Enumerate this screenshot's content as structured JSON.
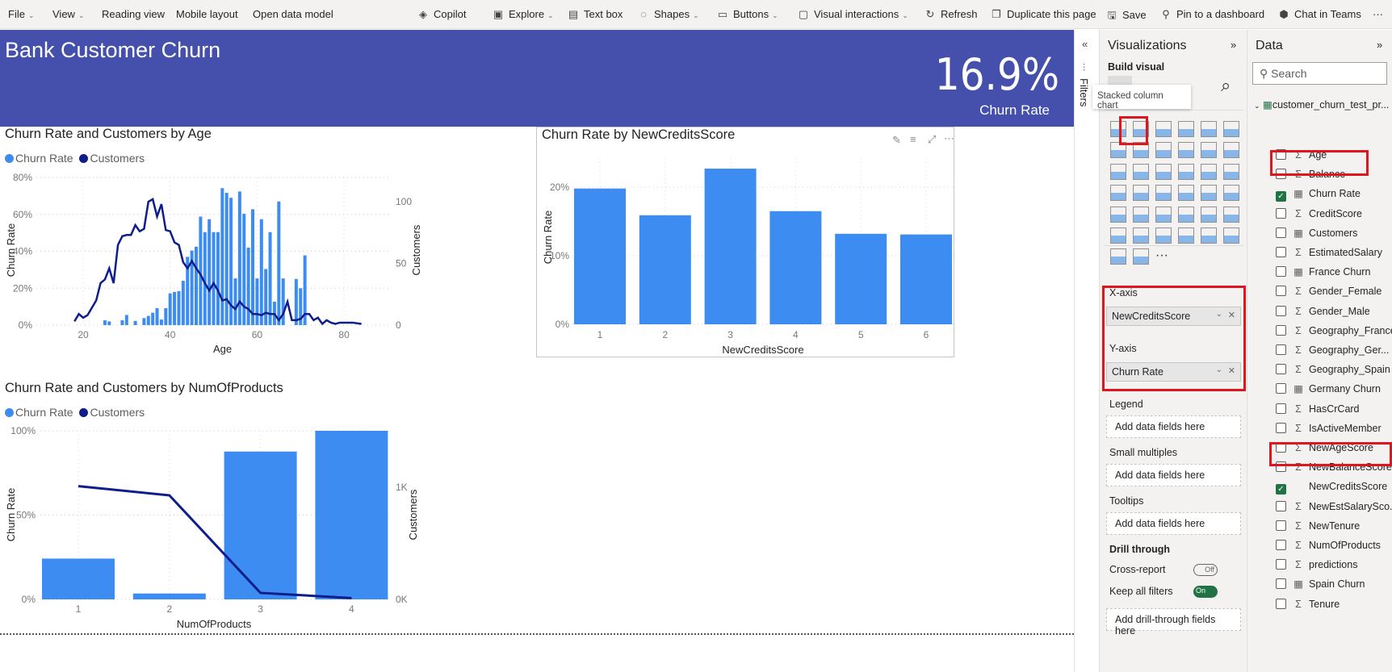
{
  "toolbar": {
    "items": [
      {
        "label": "File",
        "icon": "",
        "chevron": true
      },
      {
        "label": "View",
        "icon": "",
        "chevron": true
      },
      {
        "label": "Reading view",
        "icon": ""
      },
      {
        "label": "Mobile layout",
        "icon": ""
      },
      {
        "label": "Open data model",
        "icon": ""
      },
      {
        "label": "Copilot",
        "icon": "copilot-icon",
        "chevron": false
      },
      {
        "label": "Explore",
        "icon": "explore-icon",
        "chevron": true
      },
      {
        "label": "Text box",
        "icon": "text-box-icon"
      },
      {
        "label": "Shapes",
        "icon": "shapes-icon",
        "chevron": true
      },
      {
        "label": "Buttons",
        "icon": "buttons-icon",
        "chevron": true
      },
      {
        "label": "Visual interactions",
        "icon": "visual-interactions-icon",
        "chevron": true
      },
      {
        "label": "Refresh",
        "icon": "refresh-icon"
      },
      {
        "label": "Duplicate this page",
        "icon": "duplicate-icon"
      },
      {
        "label": "Save",
        "icon": "save-icon"
      },
      {
        "label": "Pin to a dashboard",
        "icon": "pin-icon"
      },
      {
        "label": "Chat in Teams",
        "icon": "teams-icon"
      }
    ],
    "more": "···"
  },
  "banner": {
    "title": "Bank Customer Churn",
    "kpi_value": "16.9%",
    "kpi_label": "Churn Rate",
    "color": "#4450ab"
  },
  "colors": {
    "churn": "#3c8cf2",
    "customers": "#0d1d8c"
  },
  "chart_data": [
    {
      "type": "bar+line",
      "title": "Churn Rate and Customers by Age",
      "legend": [
        "Churn Rate",
        "Customers"
      ],
      "xlabel": "Age",
      "ylabel": "Churn Rate",
      "y2label": "Customers",
      "xticks": [
        "20",
        "40",
        "60",
        "80"
      ],
      "yticks": [
        "0%",
        "20%",
        "40%",
        "60%",
        "80%"
      ],
      "y2ticks": [
        "0",
        "50",
        "100"
      ],
      "ylim": [
        0,
        80
      ],
      "y2lim": [
        0,
        100
      ],
      "xlim": [
        10,
        90
      ],
      "bars": {
        "x": [
          25,
          26,
          29,
          30,
          32,
          34,
          35,
          36,
          37,
          38,
          39,
          40,
          41,
          42,
          43,
          44,
          45,
          46,
          47,
          48,
          49,
          50,
          51,
          52,
          53,
          54,
          55,
          56,
          57,
          58,
          59,
          60,
          61,
          62,
          63,
          64,
          65,
          66,
          69,
          70,
          71
        ],
        "y": [
          2.6,
          2,
          2.6,
          5.5,
          2.3,
          3.8,
          5,
          6.7,
          9.2,
          3,
          9.2,
          17.2,
          18,
          18.4,
          24,
          37,
          40.4,
          42.5,
          58.8,
          50.4,
          57.4,
          50.4,
          50.4,
          74.2,
          71.7,
          69,
          25.3,
          72.4,
          60.3,
          42,
          62.8,
          25.3,
          57.4,
          30.4,
          50.4,
          12.7,
          67,
          25.3,
          25,
          20,
          37.8
        ]
      },
      "line": {
        "x": [
          18,
          19,
          20,
          21,
          22,
          23,
          24,
          25,
          26,
          27,
          28,
          29,
          30,
          31,
          32,
          33,
          34,
          35,
          36,
          37,
          38,
          39,
          40,
          41,
          42,
          43,
          44,
          45,
          46,
          47,
          48,
          49,
          50,
          51,
          52,
          53,
          54,
          55,
          56,
          57,
          58,
          59,
          60,
          61,
          62,
          63,
          64,
          65,
          66,
          67,
          68,
          69,
          70,
          71,
          72,
          73,
          74,
          75,
          76,
          77,
          78,
          79,
          80,
          81,
          82,
          83,
          84
        ],
        "y": [
          3,
          9,
          6,
          8,
          14,
          20,
          34,
          37,
          46,
          34,
          65,
          72,
          73,
          73,
          81,
          76,
          78,
          100,
          102,
          88,
          98,
          77,
          76,
          67,
          65,
          51,
          46,
          52,
          46,
          41,
          34,
          28,
          34,
          28,
          20,
          21,
          16,
          13,
          19,
          15,
          13,
          9,
          9,
          8,
          10,
          9,
          9,
          4,
          9,
          19,
          4,
          4,
          5,
          9,
          9,
          4,
          6,
          1,
          4,
          2,
          1,
          2,
          2,
          2,
          2,
          1.5,
          1
        ]
      }
    },
    {
      "type": "bar",
      "title": "Churn Rate by NewCreditsScore",
      "xlabel": "NewCreditsScore",
      "ylabel": "Churn Rate",
      "categories": [
        "1",
        "2",
        "3",
        "4",
        "5",
        "6"
      ],
      "values": [
        19.8,
        15.9,
        22.7,
        16.5,
        13.2,
        13.1
      ],
      "yticks": [
        "0%",
        "10%",
        "20%"
      ],
      "ylim": [
        0,
        25
      ]
    },
    {
      "type": "bar+line",
      "title": "Churn Rate and Customers by NumOfProducts",
      "legend": [
        "Churn Rate",
        "Customers"
      ],
      "xlabel": "NumOfProducts",
      "ylabel": "Churn Rate",
      "y2label": "Customers",
      "categories": [
        "1",
        "2",
        "3",
        "4"
      ],
      "values": [
        24.2,
        3.5,
        87.7,
        100
      ],
      "line": [
        1010,
        928,
        58,
        12
      ],
      "yticks": [
        "0%",
        "50%",
        "100%"
      ],
      "y2ticks": [
        "0K",
        "1K"
      ],
      "ylim": [
        0,
        100
      ],
      "y2lim": [
        0,
        1500
      ]
    }
  ],
  "filters": {
    "label": "Filters"
  },
  "viz": {
    "title": "Visualizations",
    "build": "Build visual",
    "tooltip": "Stacked column chart",
    "xaxis": "X-axis",
    "xfield": "NewCreditsScore",
    "yaxis": "Y-axis",
    "yfield": "Churn Rate",
    "legend": "Legend",
    "small": "Small multiples",
    "tooltips": "Tooltips",
    "add": "Add data fields here",
    "drill": "Drill through",
    "cross": "Cross-report",
    "cross_state": "Off",
    "keep": "Keep all filters",
    "keep_state": "On",
    "add_drill": "Add drill-through fields here",
    "more": "···"
  },
  "data": {
    "title": "Data",
    "search_placeholder": "Search",
    "table": "customer_churn_test_pr...",
    "fields": [
      {
        "name": "Age",
        "type": "sum",
        "checked": false
      },
      {
        "name": "Balance",
        "type": "sum",
        "checked": false
      },
      {
        "name": "Churn Rate",
        "type": "calc",
        "checked": true
      },
      {
        "name": "CreditScore",
        "type": "sum",
        "checked": false
      },
      {
        "name": "Customers",
        "type": "calc",
        "checked": false
      },
      {
        "name": "EstimatedSalary",
        "type": "sum",
        "checked": false
      },
      {
        "name": "France Churn",
        "type": "calc",
        "checked": false
      },
      {
        "name": "Gender_Female",
        "type": "sum",
        "checked": false
      },
      {
        "name": "Gender_Male",
        "type": "sum",
        "checked": false
      },
      {
        "name": "Geography_France",
        "type": "sum",
        "checked": false
      },
      {
        "name": "Geography_Ger...",
        "type": "sum",
        "checked": false
      },
      {
        "name": "Geography_Spain",
        "type": "sum",
        "checked": false
      },
      {
        "name": "Germany Churn",
        "type": "calc",
        "checked": false
      },
      {
        "name": "HasCrCard",
        "type": "sum",
        "checked": false
      },
      {
        "name": "IsActiveMember",
        "type": "sum",
        "checked": false
      },
      {
        "name": "NewAgeScore",
        "type": "sum",
        "checked": false
      },
      {
        "name": "NewBalanceScore",
        "type": "sum",
        "checked": false
      },
      {
        "name": "NewCreditsScore",
        "type": "none",
        "checked": true
      },
      {
        "name": "NewEstSalarySco...",
        "type": "sum",
        "checked": false
      },
      {
        "name": "NewTenure",
        "type": "sum",
        "checked": false
      },
      {
        "name": "NumOfProducts",
        "type": "sum",
        "checked": false
      },
      {
        "name": "predictions",
        "type": "sum",
        "checked": false
      },
      {
        "name": "Spain Churn",
        "type": "calc",
        "checked": false
      },
      {
        "name": "Tenure",
        "type": "sum",
        "checked": false
      }
    ]
  }
}
